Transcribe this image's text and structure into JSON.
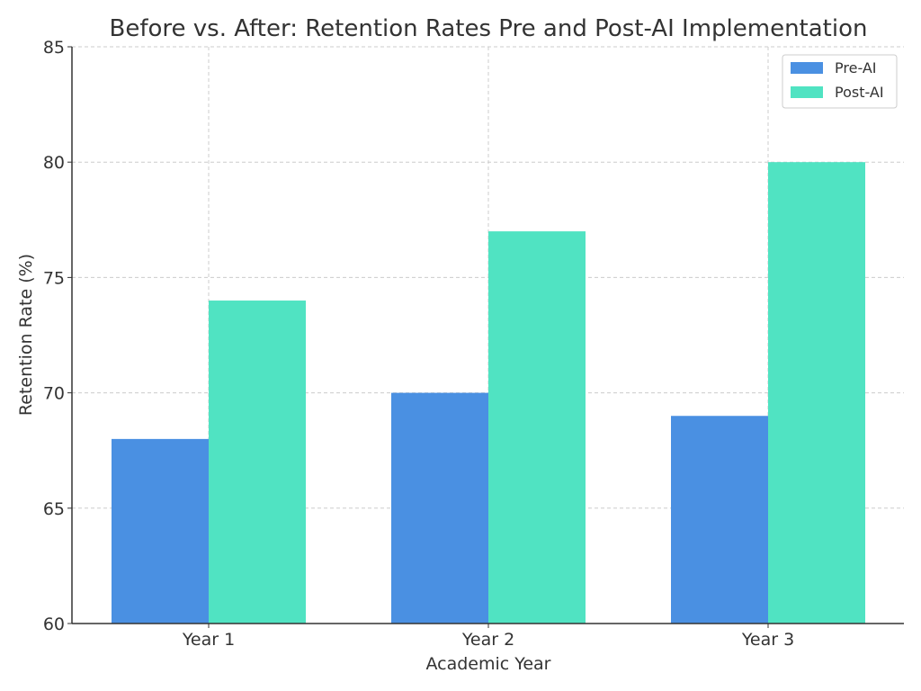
{
  "chart_data": {
    "type": "bar",
    "title": "Before vs. After: Retention Rates Pre and Post-AI Implementation",
    "xlabel": "Academic Year",
    "ylabel": "Retention Rate (%)",
    "categories": [
      "Year 1",
      "Year 2",
      "Year 3"
    ],
    "series": [
      {
        "name": "Pre-AI",
        "values": [
          68,
          70,
          69
        ],
        "color": "#4a90e2"
      },
      {
        "name": "Post-AI",
        "values": [
          74,
          77,
          80
        ],
        "color": "#50e3c2"
      }
    ],
    "ylim": [
      60,
      85
    ],
    "yticks": [
      60,
      65,
      70,
      75,
      80,
      85
    ],
    "grid": true,
    "legend_position": "top-right"
  }
}
